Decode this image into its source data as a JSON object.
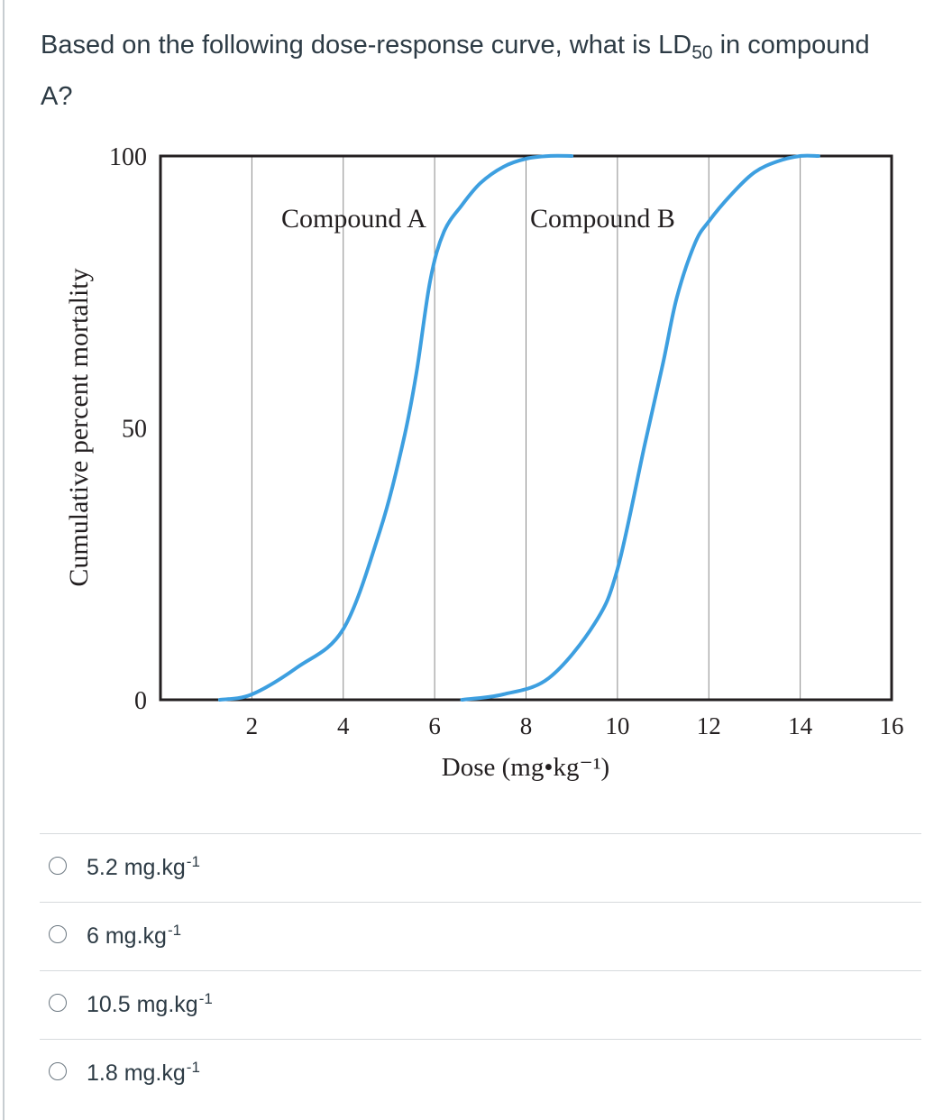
{
  "question": {
    "text_before": "Based on the following dose-response curve, what is LD",
    "subscript": "50",
    "text_after": " in compound A?"
  },
  "chart_data": {
    "type": "line",
    "xlabel": "Dose (mg•kg⁻¹)",
    "ylabel": "Cumulative percent mortality",
    "xlim": [
      0,
      16
    ],
    "ylim": [
      0,
      100
    ],
    "x_ticks": [
      "2",
      "4",
      "6",
      "8",
      "10",
      "12",
      "14",
      "16"
    ],
    "y_ticks": [
      "0",
      "50",
      "100"
    ],
    "grid": "vertical",
    "line_color": "#3d9fe0",
    "series": [
      {
        "name": "Compound A",
        "x": [
          1.3,
          2.0,
          3.0,
          4.0,
          4.8,
          5.3,
          5.6,
          5.9,
          6.2,
          6.6,
          7.0,
          7.5,
          8.0,
          8.5,
          9.0
        ],
        "y": [
          0,
          1,
          6,
          13,
          31,
          47,
          60,
          77,
          86,
          91,
          95,
          98,
          99.5,
          100,
          100
        ]
      },
      {
        "name": "Compound B",
        "x": [
          6.6,
          7.5,
          8.5,
          9.5,
          10.0,
          10.6,
          11.0,
          11.3,
          11.7,
          12.0,
          12.5,
          13.0,
          13.5,
          14.0,
          14.4
        ],
        "y": [
          0,
          1,
          4,
          14,
          24,
          47,
          62,
          74,
          84,
          88,
          93,
          97,
          99,
          100,
          100
        ]
      }
    ]
  },
  "answers": [
    {
      "text": "5.2 mg.kg",
      "sup": "-1"
    },
    {
      "text": "6 mg.kg",
      "sup": "-1"
    },
    {
      "text": "10.5 mg.kg",
      "sup": "-1"
    },
    {
      "text": "1.8 mg.kg",
      "sup": "-1"
    }
  ]
}
